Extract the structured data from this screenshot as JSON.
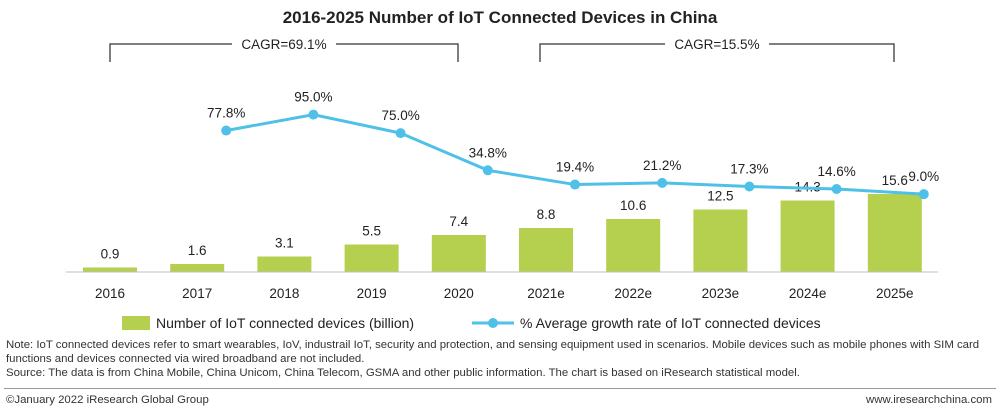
{
  "chart_data": {
    "type": "bar+line",
    "title": "2016-2025 Number of IoT Connected Devices in China",
    "categories": [
      "2016",
      "2017",
      "2018",
      "2019",
      "2020",
      "2021e",
      "2022e",
      "2023e",
      "2024e",
      "2025e"
    ],
    "series": [
      {
        "name": "Number of IoT connected devices (billion)",
        "type": "bar",
        "values": [
          0.9,
          1.6,
          3.1,
          5.5,
          7.4,
          8.8,
          10.6,
          12.5,
          14.3,
          15.6
        ],
        "labels": [
          "0.9",
          "1.6",
          "3.1",
          "5.5",
          "7.4",
          "8.8",
          "10.6",
          "12.5",
          "14.3",
          "15.6"
        ],
        "color": "#b5cf4f"
      },
      {
        "name": "% Average growth rate of IoT connected devices",
        "type": "line",
        "values": [
          null,
          77.8,
          95.0,
          75.0,
          34.8,
          19.4,
          21.2,
          17.3,
          14.6,
          9.0
        ],
        "labels": [
          null,
          "77.8%",
          "95.0%",
          "75.0%",
          "34.8%",
          "19.4%",
          "21.2%",
          "17.3%",
          "14.6%",
          "9.0%"
        ],
        "color": "#4fc0e8"
      }
    ],
    "brackets": [
      {
        "label": "CAGR=69.1%",
        "from": "2016",
        "to": "2020"
      },
      {
        "label": "CAGR=15.5%",
        "from": "2021e",
        "to": "2025e"
      }
    ],
    "legend_position": "bottom",
    "grid": false
  },
  "notes": {
    "note": "Note: IoT connected devices refer to smart wearables, IoV, industrail IoT, security and protection, and sensing equipment used in scenarios. Mobile devices such as mobile phones with SIM card functions and devices connected via wired broadband are not included.",
    "source": "Source: The data is from China Mobile, China Unicom, China Telecom, GSMA and other public information. The chart is based on iResearch statistical model."
  },
  "footer": {
    "copyright": "©January 2022 iResearch Global Group",
    "website": "www.iresearchchina.com"
  }
}
